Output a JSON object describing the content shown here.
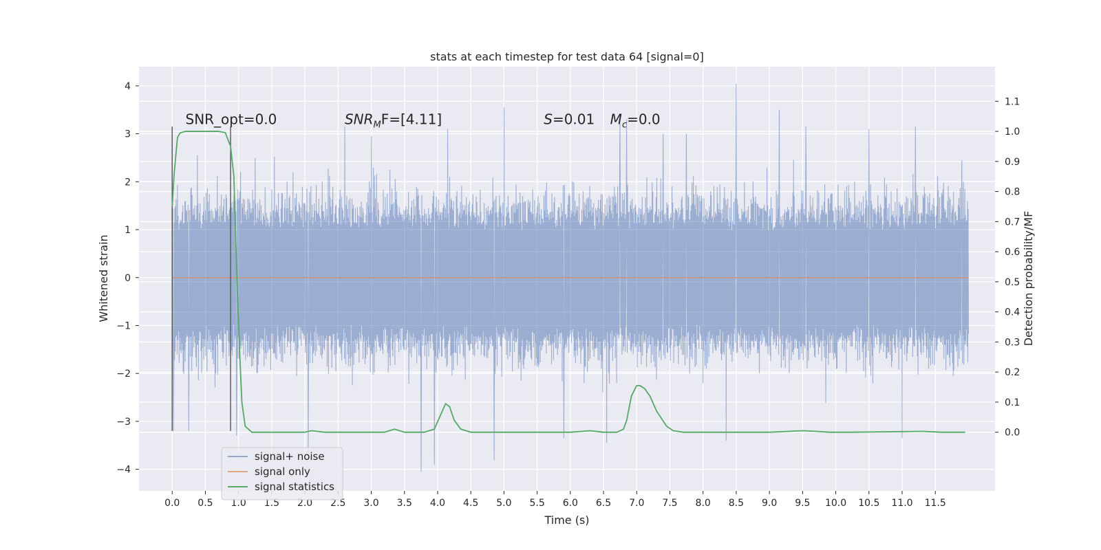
{
  "chart_data": {
    "type": "line",
    "title": "stats at each timestep for test data 64 [signal=0]",
    "xlabel": "Time (s)",
    "ylabel": "Whitened strain",
    "y2label": "Detection probability/MF",
    "xlim": [
      -0.5,
      12.4
    ],
    "ylim": [
      -4.45,
      4.4
    ],
    "y2lim": [
      -0.195,
      1.215
    ],
    "x_ticks": [
      "0.0",
      "0.5",
      "1.0",
      "1.5",
      "2.0",
      "2.5",
      "3.0",
      "3.5",
      "4.0",
      "4.5",
      "5.0",
      "5.5",
      "6.0",
      "6.5",
      "7.0",
      "7.5",
      "8.0",
      "8.5",
      "9.0",
      "9.5",
      "10.0",
      "10.5",
      "11.0",
      "11.5"
    ],
    "y_ticks": [
      "4",
      "3",
      "2",
      "1",
      "0",
      "−1",
      "−2",
      "−3",
      "−4"
    ],
    "y2_ticks": [
      "1.1",
      "1.0",
      "0.9",
      "0.8",
      "0.7",
      "0.6",
      "0.5",
      "0.4",
      "0.3",
      "0.2",
      "0.1",
      "0.0"
    ],
    "grid": true,
    "legend_position": "lower-left",
    "series": [
      {
        "name": "signal+ noise",
        "color": "#4c72b0",
        "axis": "left",
        "x_range": [
          0.0,
          12.0
        ],
        "typical_amplitude": 2.0,
        "peaks": [
          [
            0.02,
            -3.2
          ],
          [
            0.25,
            -3.2
          ],
          [
            0.38,
            2.55
          ],
          [
            0.97,
            -3.3
          ],
          [
            1.25,
            2.5
          ],
          [
            2.05,
            -3.65
          ],
          [
            2.6,
            3.15
          ],
          [
            3.0,
            2.95
          ],
          [
            3.75,
            -4.05
          ],
          [
            3.95,
            -3.9
          ],
          [
            4.15,
            3.1
          ],
          [
            4.85,
            -3.8
          ],
          [
            5.0,
            3.55
          ],
          [
            5.9,
            -3.35
          ],
          [
            6.55,
            -3.45
          ],
          [
            6.75,
            3.4
          ],
          [
            6.85,
            3.3
          ],
          [
            7.4,
            3.0
          ],
          [
            7.75,
            3.0
          ],
          [
            8.35,
            -3.4
          ],
          [
            8.5,
            4.05
          ],
          [
            9.15,
            3.5
          ],
          [
            9.55,
            3.15
          ],
          [
            10.5,
            3.1
          ],
          [
            11.0,
            -3.35
          ],
          [
            11.2,
            3.15
          ],
          [
            11.9,
            2.45
          ]
        ]
      },
      {
        "name": "signal only",
        "color": "#dd8452",
        "axis": "left",
        "x": [
          0.0,
          12.0
        ],
        "y": [
          0.0,
          0.0
        ]
      },
      {
        "name": "signal statistics",
        "color": "#55a868",
        "axis": "right",
        "x": [
          0.0,
          0.03,
          0.08,
          0.12,
          0.2,
          0.3,
          0.5,
          0.7,
          0.8,
          0.88,
          0.93,
          0.97,
          1.02,
          1.05,
          1.1,
          1.2,
          1.5,
          2.0,
          2.1,
          2.3,
          2.6,
          3.0,
          3.2,
          3.35,
          3.5,
          3.8,
          3.95,
          4.05,
          4.12,
          4.18,
          4.25,
          4.35,
          4.5,
          5.0,
          5.5,
          6.0,
          6.3,
          6.5,
          6.7,
          6.8,
          6.85,
          6.92,
          7.0,
          7.05,
          7.12,
          7.2,
          7.3,
          7.45,
          7.55,
          7.7,
          8.0,
          9.0,
          9.5,
          9.7,
          9.9,
          10.2,
          11.0,
          11.3,
          11.6,
          11.95
        ],
        "y": [
          0.75,
          0.86,
          0.98,
          0.995,
          1.0,
          1.0,
          1.0,
          1.0,
          0.996,
          0.95,
          0.85,
          0.55,
          0.25,
          0.1,
          0.02,
          0.0,
          0.0,
          0.0,
          0.005,
          0.0,
          0.0,
          0.0,
          0.0,
          0.01,
          0.0,
          0.0,
          0.01,
          0.06,
          0.095,
          0.085,
          0.04,
          0.01,
          0.0,
          0.0,
          0.0,
          0.0,
          0.005,
          0.0,
          0.0,
          0.01,
          0.04,
          0.12,
          0.155,
          0.155,
          0.145,
          0.12,
          0.07,
          0.02,
          0.005,
          0.0,
          0.0,
          0.0,
          0.005,
          0.003,
          0.0,
          0.0,
          0.002,
          0.003,
          0.0,
          0.0
        ]
      }
    ],
    "vertical_lines": [
      {
        "x": 0.0,
        "color": "#555555",
        "axis": "left",
        "y": [
          -3.2,
          3.15
        ]
      },
      {
        "x": 0.88,
        "color": "#555555",
        "axis": "left",
        "y": [
          -3.2,
          3.15
        ]
      }
    ],
    "annotations": [
      {
        "kind": "plain",
        "text": "SNR_opt=0.0",
        "x": 0.2,
        "y": 3.2
      },
      {
        "kind": "snrmf",
        "base": "SNR",
        "sub": "M",
        "tail": "F=[4.11]",
        "x": 2.6,
        "y": 3.2
      },
      {
        "kind": "stat",
        "base": "S",
        "tail": "=0.01",
        "x": 5.6,
        "y": 3.2
      },
      {
        "kind": "mc",
        "base": "M",
        "sub": "c",
        "tail": "=0.0",
        "x": 6.6,
        "y": 3.2
      }
    ]
  }
}
